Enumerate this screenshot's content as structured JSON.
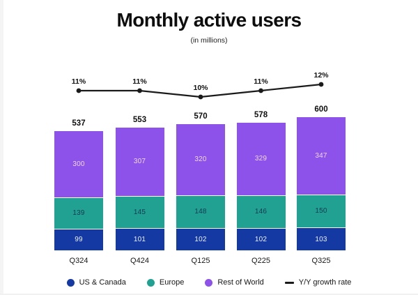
{
  "page": {
    "title": "Monthly active users",
    "subtitle": "(in millions)"
  },
  "colors": {
    "us_canada": "#1539A3",
    "europe": "#21A191",
    "rest_of_world": "#8C52E9",
    "growth_line": "#1a1a1a",
    "segment_separator": "#ffffff",
    "value_on_us_canada": "#E9F0FF",
    "value_on_europe": "#123A52",
    "value_on_rest_of_world": "#F4D7F2",
    "page_background": "#ffffff",
    "page_edge": "#f4f4f4"
  },
  "chart_data": {
    "type": "bar",
    "subtype": "stacked-bar-with-line",
    "title": "Monthly active users",
    "subtitle": "(in millions)",
    "categories": [
      "Q324",
      "Q424",
      "Q125",
      "Q225",
      "Q325"
    ],
    "series": [
      {
        "name": "US & Canada",
        "values": [
          99,
          101,
          102,
          102,
          103
        ],
        "color": "#1539A3",
        "value_text_color": "#E9F0FF"
      },
      {
        "name": "Europe",
        "values": [
          139,
          145,
          148,
          146,
          150
        ],
        "color": "#21A191",
        "value_text_color": "#123A52"
      },
      {
        "name": "Rest of World",
        "values": [
          300,
          307,
          320,
          329,
          347
        ],
        "color": "#8C52E9",
        "value_text_color": "#F4D7F2"
      }
    ],
    "totals": [
      "537",
      "553",
      "570",
      "578",
      "600"
    ],
    "line_series": {
      "name": "Y/Y growth rate",
      "values_pct": [
        11,
        11,
        10,
        11,
        12
      ],
      "labels": [
        "11%",
        "11%",
        "10%",
        "11%",
        "12%"
      ],
      "color": "#1a1a1a"
    },
    "ylim": [
      0,
      600
    ],
    "grid": false,
    "legend_position": "bottom"
  },
  "legend": {
    "items": [
      {
        "label": "US & Canada",
        "marker": "dot",
        "color": "#1539A3"
      },
      {
        "label": "Europe",
        "marker": "dot",
        "color": "#21A191"
      },
      {
        "label": "Rest of World",
        "marker": "dot",
        "color": "#8C52E9"
      },
      {
        "label": "Y/Y growth rate",
        "marker": "dash",
        "color": "#1a1a1a"
      }
    ]
  }
}
